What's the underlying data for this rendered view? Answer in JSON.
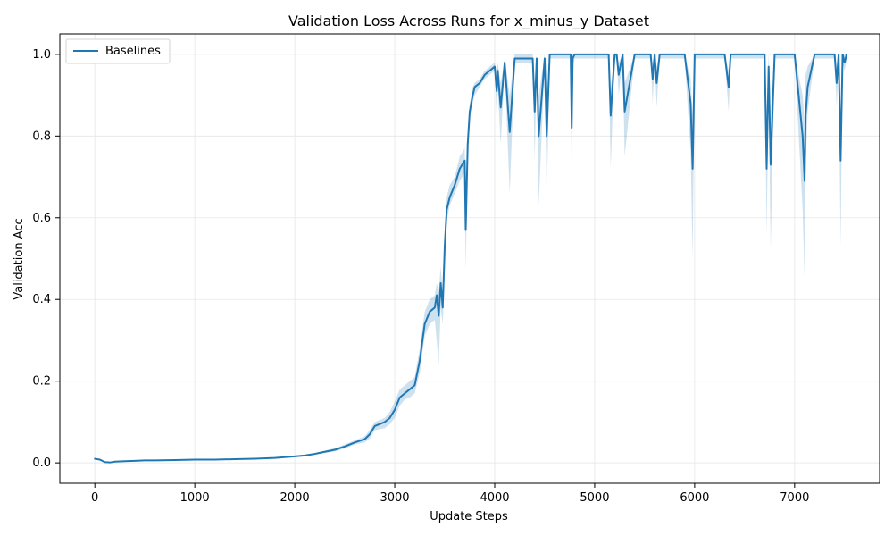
{
  "chart_data": {
    "type": "line",
    "title": "Validation Loss Across Runs for x_minus_y Dataset",
    "xlabel": "Update Steps",
    "ylabel": "Validation Acc",
    "xlim": [
      -350,
      7850
    ],
    "ylim": [
      -0.05,
      1.05
    ],
    "xticks": [
      0,
      1000,
      2000,
      3000,
      4000,
      5000,
      6000,
      7000
    ],
    "xtick_labels": [
      "0",
      "1000",
      "2000",
      "3000",
      "4000",
      "5000",
      "6000",
      "7000"
    ],
    "yticks": [
      0.0,
      0.2,
      0.4,
      0.6,
      0.8,
      1.0
    ],
    "ytick_labels": [
      "0.0",
      "0.2",
      "0.4",
      "0.6",
      "0.8",
      "1.0"
    ],
    "grid": true,
    "legend": {
      "location": "upper left",
      "entries": [
        "Baselines"
      ]
    },
    "colors": {
      "line": "#1f77b4",
      "band": "#1f77b4",
      "grid": "#e6e6e6",
      "axis": "#000000"
    },
    "series": [
      {
        "name": "Baselines",
        "x": [
          0,
          50,
          100,
          150,
          200,
          300,
          400,
          500,
          600,
          800,
          1000,
          1200,
          1400,
          1600,
          1800,
          2000,
          2100,
          2200,
          2300,
          2400,
          2500,
          2600,
          2700,
          2750,
          2800,
          2900,
          2950,
          3000,
          3050,
          3100,
          3150,
          3200,
          3250,
          3300,
          3350,
          3400,
          3420,
          3440,
          3460,
          3480,
          3500,
          3520,
          3550,
          3600,
          3650,
          3700,
          3710,
          3730,
          3750,
          3780,
          3800,
          3850,
          3900,
          3950,
          4000,
          4020,
          4030,
          4060,
          4100,
          4150,
          4200,
          4300,
          4380,
          4400,
          4420,
          4440,
          4500,
          4520,
          4550,
          4600,
          4700,
          4760,
          4770,
          4780,
          4800,
          4900,
          5000,
          5100,
          5140,
          5160,
          5200,
          5220,
          5240,
          5280,
          5300,
          5400,
          5500,
          5560,
          5580,
          5600,
          5620,
          5650,
          5700,
          5800,
          5900,
          5960,
          5980,
          6000,
          6100,
          6200,
          6300,
          6340,
          6360,
          6400,
          6500,
          6600,
          6700,
          6720,
          6740,
          6760,
          6800,
          6900,
          7000,
          7080,
          7100,
          7110,
          7130,
          7200,
          7300,
          7400,
          7420,
          7440,
          7460,
          7480,
          7500,
          7520
        ],
        "y": [
          0.01,
          0.008,
          0.002,
          0.001,
          0.003,
          0.004,
          0.005,
          0.006,
          0.006,
          0.007,
          0.008,
          0.008,
          0.009,
          0.01,
          0.012,
          0.016,
          0.018,
          0.022,
          0.027,
          0.032,
          0.04,
          0.05,
          0.058,
          0.07,
          0.09,
          0.1,
          0.11,
          0.13,
          0.16,
          0.17,
          0.18,
          0.19,
          0.25,
          0.34,
          0.37,
          0.38,
          0.41,
          0.36,
          0.44,
          0.38,
          0.53,
          0.62,
          0.65,
          0.68,
          0.72,
          0.74,
          0.57,
          0.78,
          0.86,
          0.9,
          0.92,
          0.93,
          0.95,
          0.96,
          0.97,
          0.91,
          0.96,
          0.87,
          0.98,
          0.81,
          0.99,
          0.99,
          0.99,
          0.86,
          0.99,
          0.8,
          0.99,
          0.8,
          1.0,
          1.0,
          1.0,
          1.0,
          0.82,
          0.99,
          1.0,
          1.0,
          1.0,
          1.0,
          1.0,
          0.85,
          1.0,
          1.0,
          0.95,
          1.0,
          0.86,
          1.0,
          1.0,
          1.0,
          0.94,
          1.0,
          0.93,
          1.0,
          1.0,
          1.0,
          1.0,
          0.88,
          0.72,
          1.0,
          1.0,
          1.0,
          1.0,
          0.92,
          1.0,
          1.0,
          1.0,
          1.0,
          1.0,
          0.72,
          0.97,
          0.73,
          1.0,
          1.0,
          1.0,
          0.8,
          0.69,
          0.85,
          0.92,
          1.0,
          1.0,
          1.0,
          0.93,
          1.0,
          0.74,
          1.0,
          0.98,
          1.0
        ],
        "lower": [
          0.009,
          0.007,
          0.001,
          0.0,
          0.002,
          0.003,
          0.004,
          0.005,
          0.005,
          0.006,
          0.007,
          0.007,
          0.008,
          0.009,
          0.01,
          0.014,
          0.016,
          0.02,
          0.024,
          0.028,
          0.035,
          0.045,
          0.05,
          0.06,
          0.08,
          0.085,
          0.095,
          0.11,
          0.14,
          0.155,
          0.16,
          0.17,
          0.22,
          0.31,
          0.34,
          0.35,
          0.3,
          0.24,
          0.38,
          0.34,
          0.47,
          0.59,
          0.63,
          0.66,
          0.69,
          0.71,
          0.47,
          0.74,
          0.84,
          0.88,
          0.9,
          0.92,
          0.94,
          0.95,
          0.96,
          0.84,
          0.92,
          0.78,
          0.97,
          0.66,
          0.98,
          0.98,
          0.98,
          0.74,
          0.98,
          0.63,
          0.98,
          0.64,
          0.99,
          0.99,
          0.99,
          0.99,
          0.68,
          0.97,
          0.99,
          0.99,
          0.99,
          0.99,
          0.99,
          0.72,
          0.99,
          0.99,
          0.9,
          0.99,
          0.75,
          0.99,
          0.99,
          0.99,
          0.88,
          0.99,
          0.87,
          0.99,
          0.99,
          0.99,
          0.99,
          0.76,
          0.5,
          0.99,
          0.99,
          0.99,
          0.99,
          0.86,
          0.99,
          0.99,
          0.99,
          0.99,
          0.99,
          0.56,
          0.93,
          0.52,
          0.99,
          0.99,
          0.99,
          0.62,
          0.45,
          0.72,
          0.86,
          0.99,
          0.99,
          0.99,
          0.87,
          0.98,
          0.53,
          0.98,
          0.96,
          0.99
        ],
        "upper": [
          0.011,
          0.009,
          0.003,
          0.002,
          0.004,
          0.005,
          0.006,
          0.007,
          0.007,
          0.008,
          0.009,
          0.009,
          0.01,
          0.011,
          0.014,
          0.018,
          0.02,
          0.024,
          0.03,
          0.036,
          0.045,
          0.055,
          0.065,
          0.08,
          0.1,
          0.11,
          0.125,
          0.15,
          0.18,
          0.19,
          0.2,
          0.21,
          0.28,
          0.37,
          0.4,
          0.41,
          0.44,
          0.42,
          0.48,
          0.42,
          0.57,
          0.65,
          0.68,
          0.7,
          0.75,
          0.77,
          0.62,
          0.8,
          0.88,
          0.92,
          0.93,
          0.94,
          0.96,
          0.97,
          0.98,
          0.95,
          0.98,
          0.93,
          0.99,
          0.9,
          1.0,
          1.0,
          1.0,
          0.93,
          1.0,
          0.9,
          1.0,
          0.9,
          1.0,
          1.0,
          1.0,
          1.0,
          0.9,
          1.0,
          1.0,
          1.0,
          1.0,
          1.0,
          1.0,
          0.92,
          1.0,
          1.0,
          0.98,
          1.0,
          0.93,
          1.0,
          1.0,
          1.0,
          0.98,
          1.0,
          0.97,
          1.0,
          1.0,
          1.0,
          1.0,
          0.94,
          0.85,
          1.0,
          1.0,
          1.0,
          1.0,
          0.96,
          1.0,
          1.0,
          1.0,
          1.0,
          1.0,
          0.86,
          1.0,
          0.86,
          1.0,
          1.0,
          1.0,
          0.9,
          0.84,
          0.95,
          0.97,
          1.0,
          1.0,
          1.0,
          0.97,
          1.0,
          0.86,
          1.0,
          1.0,
          1.0
        ]
      }
    ]
  }
}
